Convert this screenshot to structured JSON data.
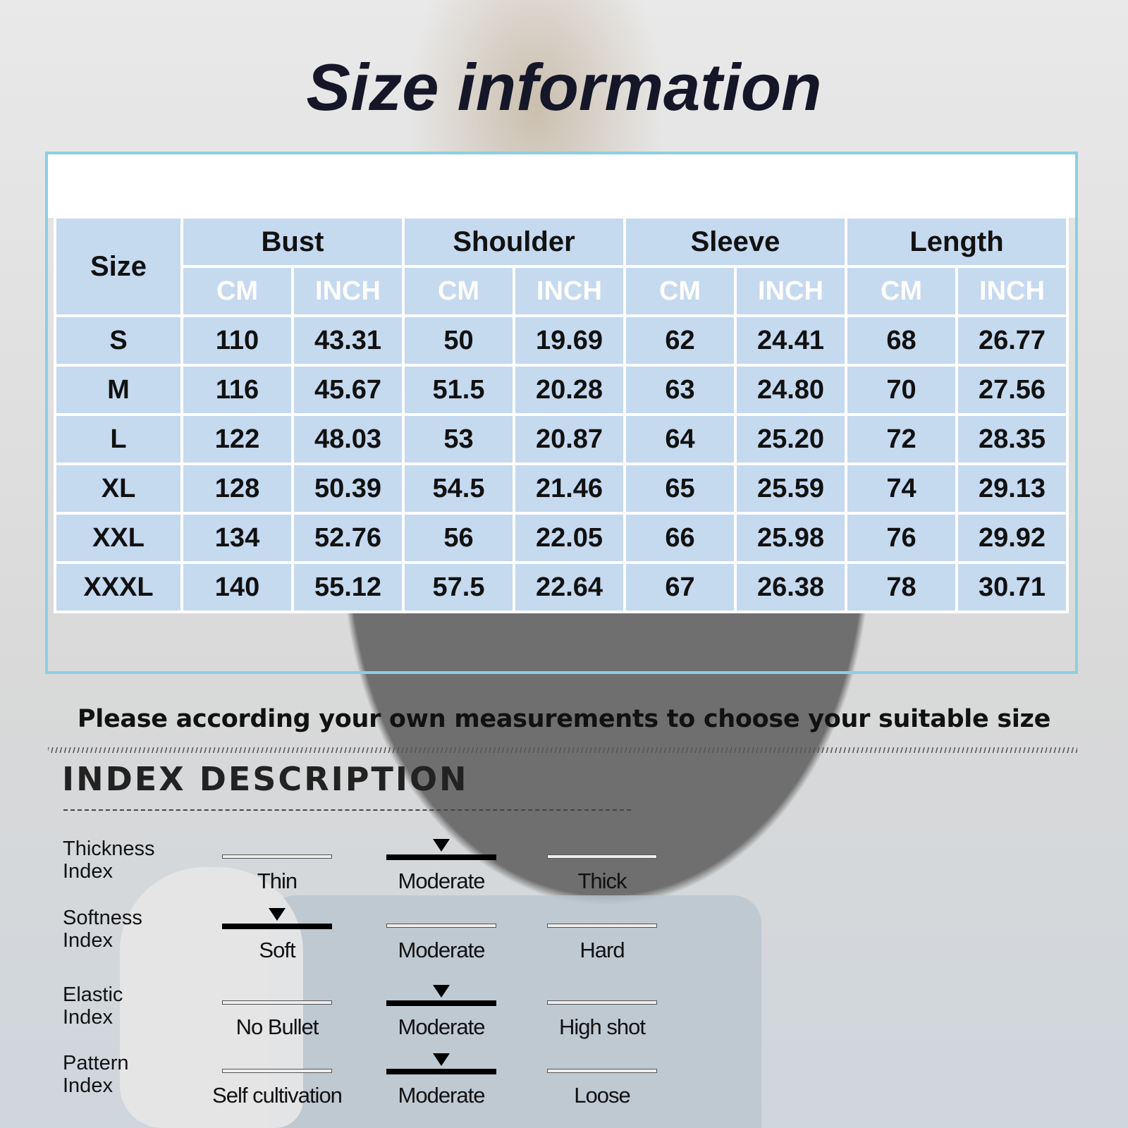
{
  "title": "Size information",
  "table": {
    "size_header": "Size",
    "groups": [
      "Bust",
      "Shoulder",
      "Sleeve",
      "Length"
    ],
    "units": [
      "CM",
      "INCH"
    ],
    "rows": [
      [
        "S",
        "110",
        "43.31",
        "50",
        "19.69",
        "62",
        "24.41",
        "68",
        "26.77"
      ],
      [
        "M",
        "116",
        "45.67",
        "51.5",
        "20.28",
        "63",
        "24.80",
        "70",
        "27.56"
      ],
      [
        "L",
        "122",
        "48.03",
        "53",
        "20.87",
        "64",
        "25.20",
        "72",
        "28.35"
      ],
      [
        "XL",
        "128",
        "50.39",
        "54.5",
        "21.46",
        "65",
        "25.59",
        "74",
        "29.13"
      ],
      [
        "XXL",
        "134",
        "52.76",
        "56",
        "22.05",
        "66",
        "25.98",
        "76",
        "29.92"
      ],
      [
        "XXXL",
        "140",
        "55.12",
        "57.5",
        "22.64",
        "67",
        "26.38",
        "78",
        "30.71"
      ]
    ]
  },
  "note": "Please according your own measurements to choose your suitable size",
  "index": {
    "title": "INDEX DESCRIPTION",
    "rows": [
      {
        "label": "Thickness\nIndex",
        "options": [
          "Thin",
          "Moderate",
          "Thick"
        ],
        "selected": 1
      },
      {
        "label": "Softness\nIndex",
        "options": [
          "Soft",
          "Moderate",
          "Hard"
        ],
        "selected": 0
      },
      {
        "label": "Elastic\nIndex",
        "options": [
          "No Bullet",
          "Moderate",
          "High shot"
        ],
        "selected": 1
      },
      {
        "label": "Pattern\nIndex",
        "options": [
          "Self cultivation",
          "Moderate",
          "Loose"
        ],
        "selected": 1
      }
    ]
  },
  "colors": {
    "cell": "#c5d9ef",
    "frame": "#8ccfe2",
    "title": "#161629"
  }
}
